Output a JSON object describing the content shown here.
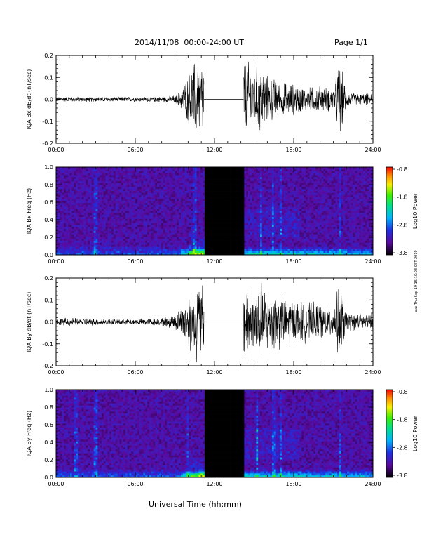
{
  "header": {
    "title": "2014/11/08  00:00-24:00 UT",
    "page": "Page 1/1"
  },
  "footer": {
    "xlabel": "Universal Time (hh:mm)",
    "stamp": "wat Thu Sep 19 15:10:08 CST 2019"
  },
  "chart_data": [
    {
      "type": "line",
      "ylabel": "IQA Bx dB/dt (nT/sec)",
      "xlim_hours": [
        0,
        24
      ],
      "ylim": [
        -0.2,
        0.2
      ],
      "x_ticks": [
        "00:00",
        "06:00",
        "12:00",
        "18:00",
        "24:00"
      ],
      "y_ticks": [
        "0.2",
        "0.1",
        "0.0",
        "-0.1",
        "-0.2"
      ],
      "data_gap_hours": [
        11.2,
        14.2
      ],
      "envelope": {
        "hours": [
          0,
          2,
          4,
          6,
          8,
          9,
          9.5,
          10,
          10.5,
          11,
          11.2,
          14.2,
          14.5,
          15,
          15.5,
          16,
          17,
          18,
          19,
          20,
          21,
          21.5,
          22,
          23,
          24
        ],
        "amplitude": [
          0.012,
          0.014,
          0.012,
          0.012,
          0.014,
          0.02,
          0.05,
          0.12,
          0.2,
          0.2,
          0.2,
          0.2,
          0.2,
          0.16,
          0.18,
          0.12,
          0.09,
          0.08,
          0.06,
          0.07,
          0.06,
          0.2,
          0.04,
          0.03,
          0.03
        ]
      }
    },
    {
      "type": "heatmap",
      "ylabel": "IQA Bx Freq (Hz)",
      "xlim_hours": [
        0,
        24
      ],
      "ylim": [
        0.0,
        1.0
      ],
      "x_ticks": [
        "00:00",
        "06:00",
        "12:00",
        "18:00",
        "24:00"
      ],
      "y_ticks": [
        "1.0",
        "0.8",
        "0.6",
        "0.4",
        "0.2",
        "0.0"
      ],
      "data_gap_hours": [
        11.2,
        14.2
      ],
      "colorbar": {
        "label": "Log10 Power",
        "range": [
          -3.8,
          -0.8
        ],
        "ticks": [
          "-0.8",
          "-1.8",
          "-2.8",
          "-3.8"
        ]
      }
    },
    {
      "type": "line",
      "ylabel": "IQA By dB/dt (nT/sec)",
      "xlim_hours": [
        0,
        24
      ],
      "ylim": [
        -0.2,
        0.2
      ],
      "x_ticks": [
        "00:00",
        "06:00",
        "12:00",
        "18:00",
        "24:00"
      ],
      "y_ticks": [
        "0.2",
        "0.1",
        "0.0",
        "-0.1",
        "-0.2"
      ],
      "data_gap_hours": [
        11.2,
        14.2
      ],
      "envelope": {
        "hours": [
          0,
          2,
          4,
          6,
          8,
          9,
          9.5,
          10,
          10.5,
          11,
          11.2,
          14.2,
          14.5,
          15,
          15.5,
          16,
          17,
          18,
          19,
          20,
          21,
          21.5,
          22,
          23,
          24
        ],
        "amplitude": [
          0.02,
          0.02,
          0.015,
          0.015,
          0.02,
          0.04,
          0.07,
          0.14,
          0.2,
          0.2,
          0.2,
          0.2,
          0.2,
          0.2,
          0.2,
          0.16,
          0.14,
          0.12,
          0.1,
          0.09,
          0.08,
          0.2,
          0.05,
          0.04,
          0.04
        ]
      }
    },
    {
      "type": "heatmap",
      "ylabel": "IQA By Freq (Hz)",
      "xlim_hours": [
        0,
        24
      ],
      "ylim": [
        0.0,
        1.0
      ],
      "x_ticks": [
        "00:00",
        "06:00",
        "12:00",
        "18:00",
        "24:00"
      ],
      "y_ticks": [
        "1.0",
        "0.8",
        "0.6",
        "0.4",
        "0.2",
        "0.0"
      ],
      "data_gap_hours": [
        11.2,
        14.2
      ],
      "colorbar": {
        "label": "Log10 Power",
        "range": [
          -3.8,
          -0.8
        ],
        "ticks": [
          "-0.8",
          "-1.8",
          "-2.8",
          "-3.8"
        ]
      }
    }
  ]
}
